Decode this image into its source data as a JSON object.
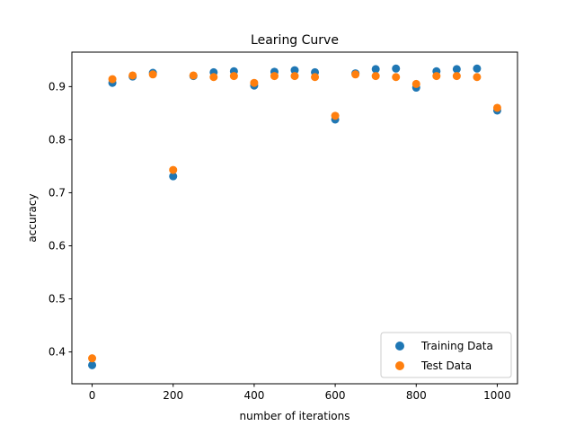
{
  "chart_data": {
    "type": "scatter",
    "title": "Learing Curve",
    "xlabel": "number of iterations",
    "ylabel": "accuracy",
    "xlim": [
      -50,
      1050
    ],
    "ylim": [
      0.34,
      0.965
    ],
    "xticks": [
      0,
      200,
      400,
      600,
      800,
      1000
    ],
    "yticks": [
      0.4,
      0.5,
      0.6,
      0.7,
      0.8,
      0.9
    ],
    "grid": false,
    "legend_position": "lower-right",
    "series": [
      {
        "name": "Training Data",
        "color": "#1f77b4",
        "x": [
          0,
          50,
          100,
          150,
          200,
          250,
          300,
          350,
          400,
          450,
          500,
          550,
          600,
          650,
          700,
          750,
          800,
          850,
          900,
          950,
          1000
        ],
        "y": [
          0.375,
          0.907,
          0.919,
          0.926,
          0.731,
          0.92,
          0.927,
          0.929,
          0.902,
          0.928,
          0.931,
          0.927,
          0.838,
          0.925,
          0.933,
          0.934,
          0.898,
          0.929,
          0.933,
          0.934,
          0.855
        ]
      },
      {
        "name": "Test Data",
        "color": "#ff7f0e",
        "x": [
          0,
          50,
          100,
          150,
          200,
          250,
          300,
          350,
          400,
          450,
          500,
          550,
          600,
          650,
          700,
          750,
          800,
          850,
          900,
          950,
          1000
        ],
        "y": [
          0.388,
          0.914,
          0.921,
          0.923,
          0.743,
          0.921,
          0.918,
          0.92,
          0.907,
          0.92,
          0.92,
          0.918,
          0.845,
          0.923,
          0.92,
          0.918,
          0.905,
          0.92,
          0.92,
          0.918,
          0.86
        ]
      }
    ]
  }
}
